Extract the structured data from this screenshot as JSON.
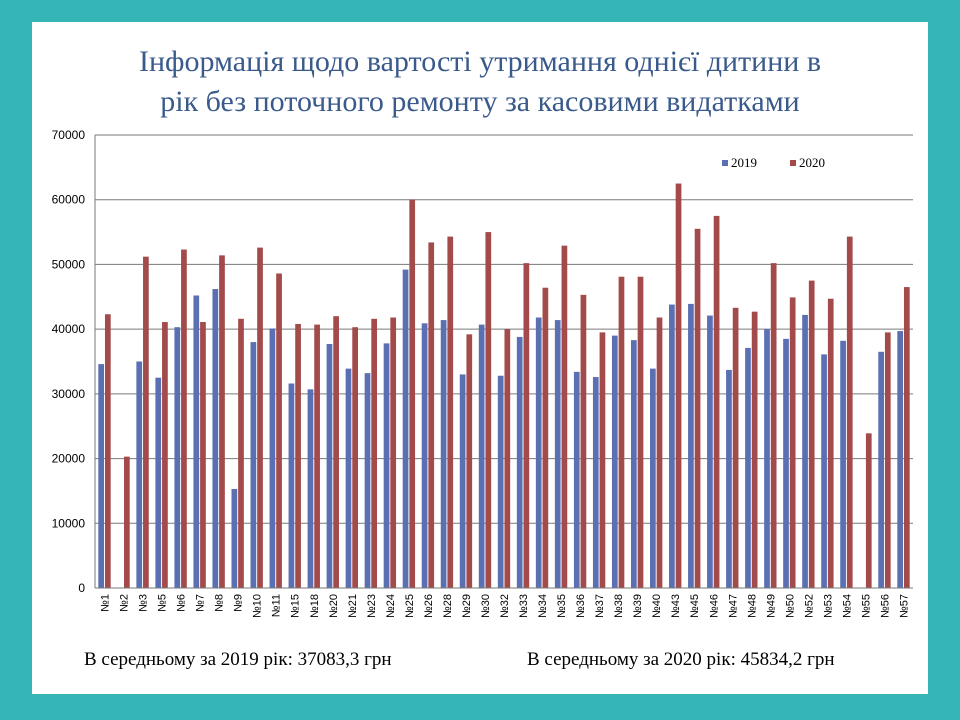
{
  "title_line1": "Інформація щодо вартості  утримання однієї дитини в",
  "title_line2": "рік без поточного ремонту за касовими видатками",
  "note_2019": "В середньому за 2019 рік: 37083,3 грн",
  "note_2020": "В середньому за 2020 рік: 45834,2 грн",
  "colors": {
    "background": "#36b5b7",
    "title": "#3a5a8c",
    "series_2019": "#5b6fb3",
    "series_2020": "#a34a4a"
  },
  "chart_data": {
    "type": "bar",
    "title": "Інформація щодо вартості  утримання однієї дитини в рік без поточного ремонту за касовими видатками",
    "xlabel": "",
    "ylabel": "",
    "ylim": [
      0,
      70000
    ],
    "yticks": [
      0,
      10000,
      20000,
      30000,
      40000,
      50000,
      60000,
      70000
    ],
    "grid": true,
    "legend_position": "top-right",
    "categories": [
      "№1",
      "№2",
      "№3",
      "№5",
      "№6",
      "№7",
      "№8",
      "№9",
      "№10",
      "№11",
      "№15",
      "№18",
      "№20",
      "№21",
      "№23",
      "№24",
      "№25",
      "№26",
      "№28",
      "№29",
      "№30",
      "№32",
      "№33",
      "№34",
      "№35",
      "№36",
      "№37",
      "№38",
      "№39",
      "№40",
      "№43",
      "№45",
      "№46",
      "№47",
      "№48",
      "№49",
      "№50",
      "№52",
      "№53",
      "№54",
      "№55",
      "№56",
      "№57"
    ],
    "series": [
      {
        "name": "2019",
        "values": [
          34600,
          0,
          35000,
          32500,
          40300,
          45200,
          46200,
          15300,
          38000,
          40100,
          31600,
          30700,
          37700,
          33900,
          33200,
          37800,
          49200,
          40900,
          41400,
          33000,
          40700,
          32800,
          38800,
          41800,
          41400,
          33400,
          32600,
          39000,
          38300,
          33900,
          43800,
          43900,
          42100,
          33700,
          37100,
          40000,
          38500,
          42200,
          36100,
          38200,
          0,
          36500,
          39700
        ]
      },
      {
        "name": "2020",
        "values": [
          42300,
          20300,
          51200,
          41100,
          52300,
          41100,
          51400,
          41600,
          52600,
          48600,
          40800,
          40700,
          42000,
          40300,
          41600,
          41800,
          60000,
          53400,
          54300,
          39200,
          55000,
          40000,
          50200,
          46400,
          52900,
          45300,
          39500,
          48100,
          48100,
          41800,
          62500,
          55500,
          57500,
          43300,
          42700,
          50200,
          44900,
          47500,
          44700,
          54300,
          23900,
          39500,
          46500
        ]
      }
    ]
  }
}
